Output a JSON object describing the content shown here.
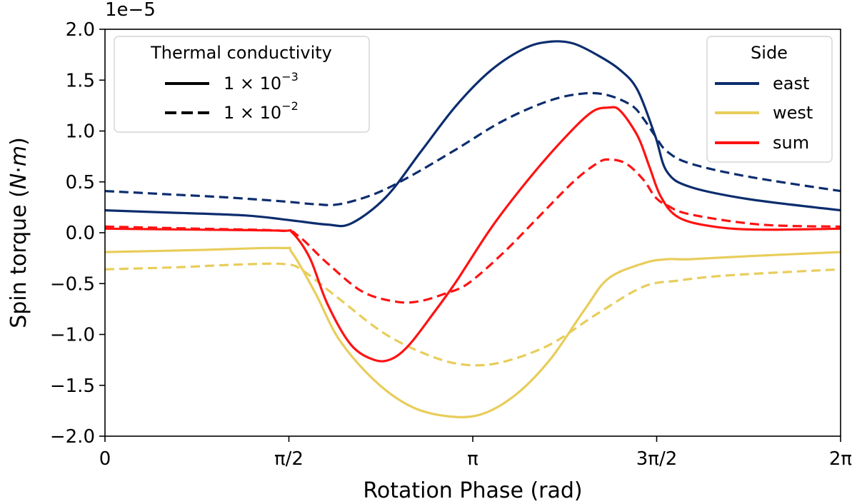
{
  "chart_data": {
    "type": "line",
    "xlabel": "Rotation Phase (rad)",
    "ylabel": "Spin torque (N·m)",
    "ylabel_parts": {
      "prefix": "Spin torque (",
      "italic": "N",
      "mid": "·",
      "italic2": "m",
      "suffix": ")"
    },
    "offset_text": "1e−5",
    "xlim": [
      0,
      6.2832
    ],
    "ylim": [
      -2.0,
      2.0
    ],
    "grid": false,
    "x_ticks": [
      {
        "value": 0,
        "label": "0"
      },
      {
        "value": 1.5708,
        "label": "π/2"
      },
      {
        "value": 3.1416,
        "label": "π"
      },
      {
        "value": 4.7124,
        "label": "3π/2"
      },
      {
        "value": 6.2832,
        "label": "2π"
      }
    ],
    "y_ticks": [
      {
        "value": 2.0,
        "label": "2.0"
      },
      {
        "value": 1.5,
        "label": "1.5"
      },
      {
        "value": 1.0,
        "label": "1.0"
      },
      {
        "value": 0.5,
        "label": "0.5"
      },
      {
        "value": 0.0,
        "label": "0.0"
      },
      {
        "value": -0.5,
        "label": "−0.5"
      },
      {
        "value": -1.0,
        "label": "−1.0"
      },
      {
        "value": -1.5,
        "label": "−1.5"
      },
      {
        "value": -2.0,
        "label": "−2.0"
      }
    ],
    "legend_style": {
      "title": "Thermal conductivity",
      "placement": "top-left",
      "entries": [
        {
          "label": "1 × 10",
          "exponent": "−3",
          "dash": "solid"
        },
        {
          "label": "1 × 10",
          "exponent": "−2",
          "dash": "dashed"
        }
      ]
    },
    "legend_side": {
      "title": "Side",
      "placement": "top-right",
      "entries": [
        {
          "label": "east",
          "color": "#0c2d6e"
        },
        {
          "label": "west",
          "color": "#e8cd5a"
        },
        {
          "label": "sum",
          "color": "#ff1212"
        }
      ]
    },
    "colors": {
      "east": "#0c2d6e",
      "west": "#e8cd5a",
      "sum": "#ff1212"
    },
    "series": [
      {
        "side": "east",
        "dash": "solid",
        "x": [
          0,
          0.5,
          1.2,
          1.6,
          1.9,
          2.1,
          2.4,
          2.7,
          3.0,
          3.3,
          3.6,
          3.82,
          4.0,
          4.2,
          4.4,
          4.55,
          4.7,
          4.8,
          5.0,
          5.5,
          6.2832
        ],
        "y": [
          0.22,
          0.2,
          0.17,
          0.12,
          0.08,
          0.09,
          0.35,
          0.8,
          1.25,
          1.6,
          1.82,
          1.88,
          1.86,
          1.75,
          1.6,
          1.4,
          0.95,
          0.6,
          0.45,
          0.33,
          0.22
        ]
      },
      {
        "side": "east",
        "dash": "dashed",
        "x": [
          0,
          0.5,
          1.0,
          1.5,
          1.8,
          2.0,
          2.3,
          2.6,
          3.0,
          3.4,
          3.8,
          4.1,
          4.3,
          4.5,
          4.6,
          4.7,
          4.8,
          5.0,
          5.5,
          6.2832
        ],
        "y": [
          0.41,
          0.38,
          0.35,
          0.31,
          0.28,
          0.28,
          0.38,
          0.55,
          0.82,
          1.1,
          1.3,
          1.37,
          1.35,
          1.25,
          1.12,
          0.95,
          0.8,
          0.68,
          0.55,
          0.41
        ]
      },
      {
        "side": "west",
        "dash": "solid",
        "x": [
          0,
          0.8,
          1.5,
          1.6,
          1.8,
          2.0,
          2.3,
          2.6,
          2.9,
          3.2,
          3.5,
          3.8,
          4.1,
          4.3,
          4.6,
          4.8,
          5.0,
          5.5,
          6.2832
        ],
        "y": [
          -0.19,
          -0.17,
          -0.15,
          -0.2,
          -0.6,
          -1.05,
          -1.45,
          -1.7,
          -1.8,
          -1.79,
          -1.6,
          -1.25,
          -0.75,
          -0.45,
          -0.3,
          -0.26,
          -0.26,
          -0.23,
          -0.19
        ]
      },
      {
        "side": "west",
        "dash": "dashed",
        "x": [
          0,
          0.6,
          1.2,
          1.55,
          1.7,
          2.0,
          2.4,
          2.8,
          3.1,
          3.4,
          3.8,
          4.2,
          4.6,
          4.9,
          5.2,
          5.6,
          6.2832
        ],
        "y": [
          -0.36,
          -0.34,
          -0.31,
          -0.31,
          -0.38,
          -0.65,
          -1.0,
          -1.22,
          -1.3,
          -1.27,
          -1.1,
          -0.8,
          -0.53,
          -0.47,
          -0.43,
          -0.4,
          -0.36
        ]
      },
      {
        "side": "sum",
        "dash": "solid",
        "x": [
          0,
          0.8,
          1.5,
          1.6,
          1.75,
          1.9,
          2.1,
          2.3,
          2.45,
          2.6,
          2.8,
          3.0,
          3.3,
          3.6,
          3.9,
          4.15,
          4.3,
          4.4,
          4.55,
          4.65,
          4.75,
          4.9,
          5.2,
          5.6,
          6.2832
        ],
        "y": [
          0.04,
          0.03,
          0.02,
          0.0,
          -0.25,
          -0.7,
          -1.1,
          -1.25,
          -1.24,
          -1.1,
          -0.8,
          -0.48,
          0.05,
          0.5,
          0.9,
          1.18,
          1.23,
          1.2,
          0.95,
          0.65,
          0.35,
          0.15,
          0.06,
          0.03,
          0.04
        ]
      },
      {
        "side": "sum",
        "dash": "dashed",
        "x": [
          0,
          0.8,
          1.5,
          1.65,
          1.9,
          2.2,
          2.5,
          2.7,
          2.9,
          3.1,
          3.4,
          3.7,
          4.0,
          4.2,
          4.3,
          4.45,
          4.6,
          4.7,
          4.8,
          5.0,
          5.6,
          6.2832
        ],
        "y": [
          0.06,
          0.04,
          0.02,
          -0.03,
          -0.3,
          -0.58,
          -0.68,
          -0.67,
          -0.6,
          -0.5,
          -0.2,
          0.15,
          0.5,
          0.68,
          0.72,
          0.68,
          0.52,
          0.35,
          0.27,
          0.18,
          0.08,
          0.06
        ]
      }
    ]
  }
}
